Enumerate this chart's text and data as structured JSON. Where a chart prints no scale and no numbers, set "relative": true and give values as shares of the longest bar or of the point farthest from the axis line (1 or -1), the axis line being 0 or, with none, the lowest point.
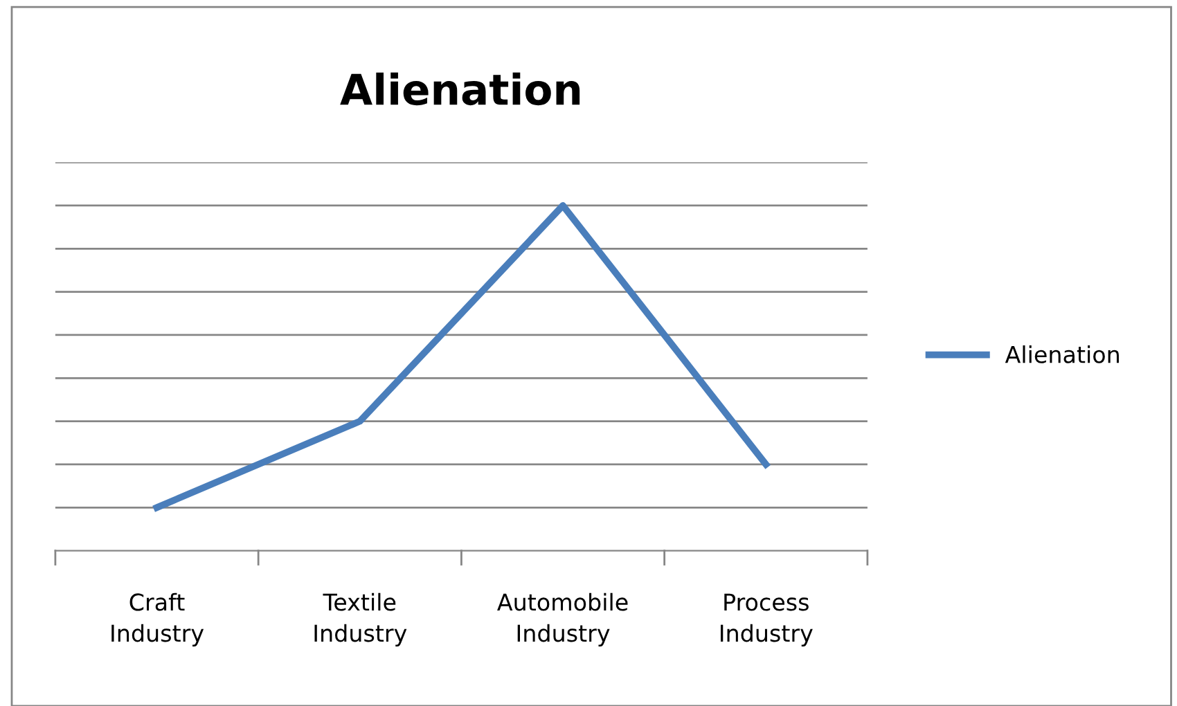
{
  "chart_data": {
    "type": "line",
    "title": "Alienation",
    "categories": [
      "Craft\nIndustry",
      "Textile\nIndustry",
      "Automobile\nIndustry",
      "Process\nIndustry"
    ],
    "series": [
      {
        "name": "Alienation",
        "color": "#4a7ebb",
        "values": [
          0.125,
          0.375,
          1,
          0.25
        ]
      }
    ],
    "relative": true,
    "grid": "y",
    "legend": "right",
    "marker": "none",
    "line_style": "solid"
  }
}
